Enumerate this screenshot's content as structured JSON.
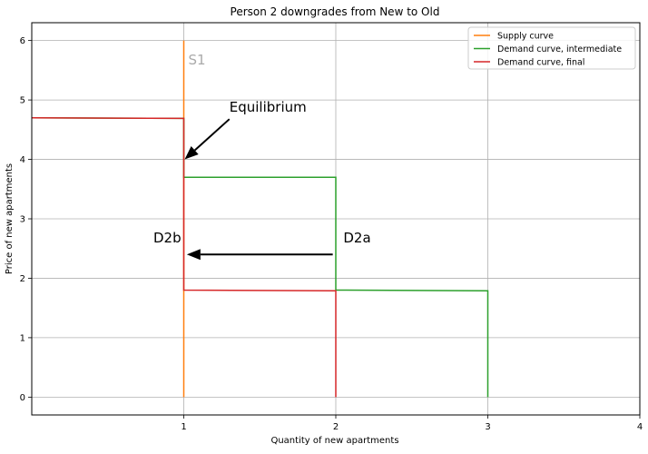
{
  "chart_data": {
    "type": "line",
    "title": "Person 2 downgrades from New to Old",
    "xlabel": "Quantity of new apartments",
    "ylabel": "Price of new apartments",
    "xlim": [
      0,
      4
    ],
    "ylim": [
      -0.3,
      6.3
    ],
    "xticks": [
      1,
      2,
      3,
      4
    ],
    "yticks": [
      0,
      1,
      2,
      3,
      4,
      5,
      6
    ],
    "grid": true,
    "legend_position": "top-right",
    "series": [
      {
        "name": "Supply curve",
        "color": "#ff7f0e",
        "points": [
          [
            1,
            0
          ],
          [
            1,
            6
          ]
        ]
      },
      {
        "name": "Demand curve, intermediate",
        "color": "#2ca02c",
        "points": [
          [
            0,
            4.7
          ],
          [
            1,
            4.69
          ],
          [
            1,
            3.7
          ],
          [
            2,
            3.7
          ],
          [
            2,
            1.8
          ],
          [
            3,
            1.79
          ],
          [
            3,
            0
          ]
        ]
      },
      {
        "name": "Demand curve, final",
        "color": "#d62728",
        "points": [
          [
            0,
            4.7
          ],
          [
            1,
            4.69
          ],
          [
            1,
            1.8
          ],
          [
            2,
            1.79
          ],
          [
            2,
            0
          ]
        ]
      }
    ],
    "annotations": [
      {
        "text": "S1",
        "x": 1.03,
        "y": 5.6,
        "color": "#aaaaaa"
      },
      {
        "text": "Equilibrium",
        "x": 1.3,
        "y": 4.8,
        "arrow_to": [
          1,
          4.0
        ]
      },
      {
        "text": "D2a",
        "x": 2.05,
        "y": 2.6
      },
      {
        "text": "D2b",
        "x": 0.8,
        "y": 2.6
      }
    ],
    "arrows": [
      {
        "from": [
          1.98,
          2.4
        ],
        "to": [
          1.02,
          2.4
        ]
      }
    ]
  }
}
